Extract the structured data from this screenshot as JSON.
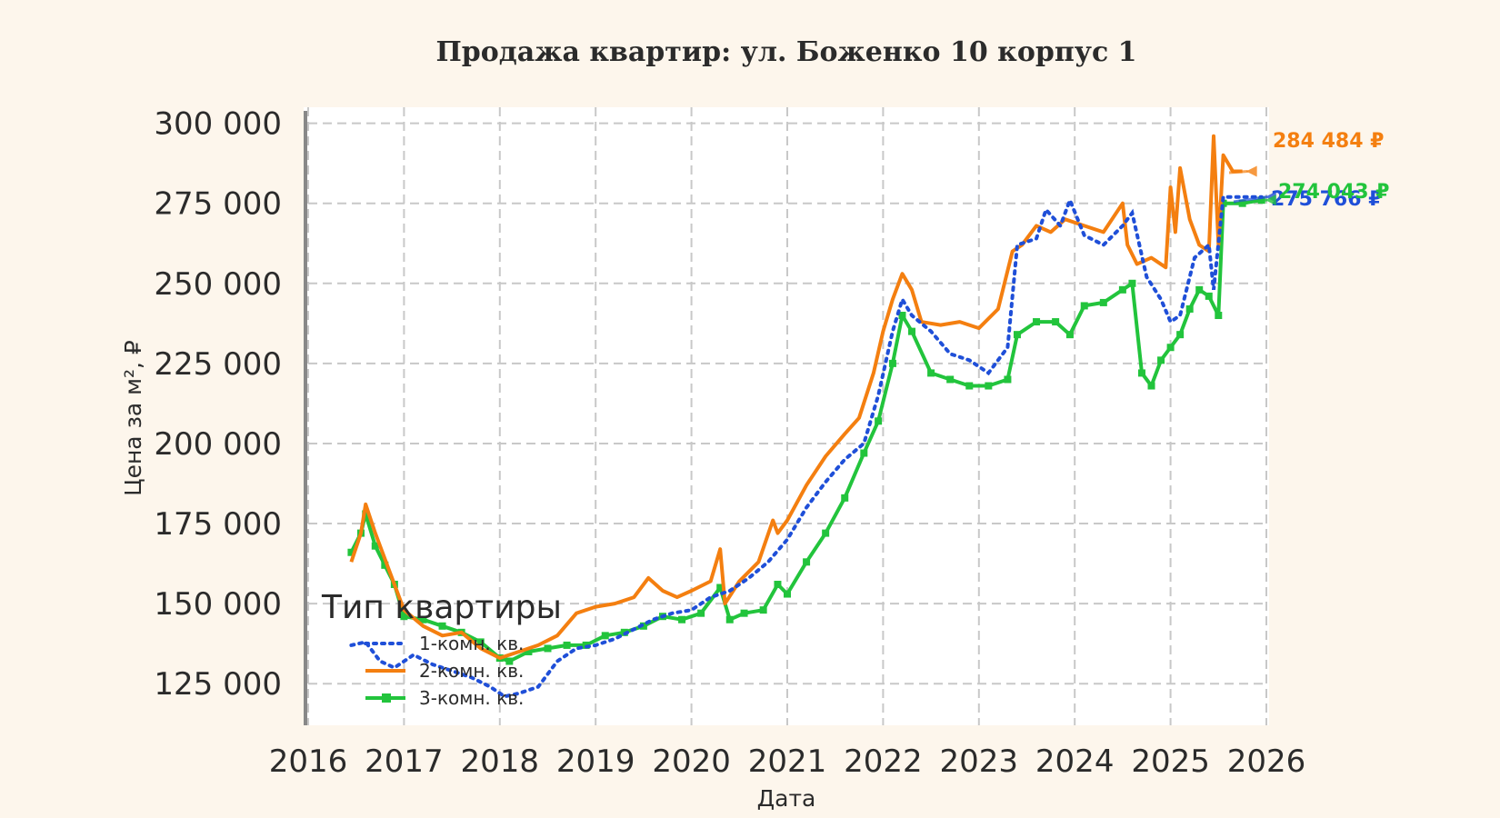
{
  "chart_data": {
    "type": "line",
    "title": "Продажа квартир: ул. Боженко 10 корпус 1",
    "xlabel": "Дата",
    "ylabel": "Цена за м², ₽",
    "xlim": [
      2016,
      2026
    ],
    "ylim": [
      112000,
      305000
    ],
    "x_ticks": [
      "2016",
      "2017",
      "2018",
      "2019",
      "2020",
      "2021",
      "2022",
      "2023",
      "2024",
      "2025",
      "2026"
    ],
    "y_ticks": [
      {
        "value": 125000,
        "label": "125 000"
      },
      {
        "value": 150000,
        "label": "150 000"
      },
      {
        "value": 175000,
        "label": "175 000"
      },
      {
        "value": 200000,
        "label": "200 000"
      },
      {
        "value": 225000,
        "label": "225 000"
      },
      {
        "value": 250000,
        "label": "250 000"
      },
      {
        "value": 275000,
        "label": "275 000"
      },
      {
        "value": 300000,
        "label": "300 000"
      }
    ],
    "grid": true,
    "legend": {
      "title": "Тип квартиры",
      "position": "bottom-left"
    },
    "series": [
      {
        "name": "1-комн. кв.",
        "color": "#1f4fd8",
        "style": "dotted",
        "end_label": "275 766 ₽",
        "x": [
          2016.45,
          2016.6,
          2016.75,
          2016.9,
          2017.1,
          2017.3,
          2017.5,
          2017.7,
          2017.9,
          2018.05,
          2018.2,
          2018.4,
          2018.6,
          2018.8,
          2019.0,
          2019.2,
          2019.4,
          2019.6,
          2019.8,
          2020.0,
          2020.2,
          2020.4,
          2020.6,
          2020.8,
          2021.0,
          2021.2,
          2021.4,
          2021.6,
          2021.8,
          2021.95,
          2022.1,
          2022.2,
          2022.3,
          2022.5,
          2022.7,
          2022.9,
          2023.1,
          2023.3,
          2023.4,
          2023.6,
          2023.7,
          2023.85,
          2023.95,
          2024.1,
          2024.3,
          2024.5,
          2024.6,
          2024.75,
          2024.9,
          2025.0,
          2025.1,
          2025.25,
          2025.4,
          2025.45,
          2025.55,
          2025.75,
          2025.95
        ],
        "y": [
          137000,
          138000,
          132000,
          130000,
          134000,
          131000,
          129000,
          127000,
          124000,
          121000,
          122000,
          124000,
          132000,
          136000,
          137000,
          139000,
          142000,
          145000,
          147000,
          148000,
          152000,
          154000,
          158000,
          163000,
          170000,
          180000,
          188000,
          195000,
          200000,
          215000,
          235000,
          245000,
          240000,
          235000,
          228000,
          226000,
          222000,
          230000,
          262000,
          264000,
          273000,
          268000,
          276000,
          265000,
          262000,
          268000,
          272000,
          252000,
          245000,
          238000,
          240000,
          258000,
          262000,
          248000,
          277000,
          277000,
          277000
        ]
      },
      {
        "name": "2-комн. кв.",
        "color": "#f47f10",
        "style": "solid",
        "end_label": "284 484 ₽",
        "x": [
          2016.45,
          2016.55,
          2016.6,
          2016.7,
          2016.85,
          2017.0,
          2017.2,
          2017.4,
          2017.6,
          2017.8,
          2018.0,
          2018.2,
          2018.4,
          2018.6,
          2018.8,
          2019.0,
          2019.2,
          2019.4,
          2019.55,
          2019.7,
          2019.85,
          2020.0,
          2020.2,
          2020.3,
          2020.35,
          2020.5,
          2020.7,
          2020.85,
          2020.9,
          2021.0,
          2021.2,
          2021.4,
          2021.6,
          2021.75,
          2021.9,
          2022.0,
          2022.1,
          2022.2,
          2022.3,
          2022.4,
          2022.6,
          2022.8,
          2023.0,
          2023.2,
          2023.35,
          2023.45,
          2023.6,
          2023.75,
          2023.9,
          2024.1,
          2024.3,
          2024.5,
          2024.55,
          2024.65,
          2024.8,
          2024.95,
          2025.0,
          2025.05,
          2025.1,
          2025.2,
          2025.3,
          2025.4,
          2025.45,
          2025.5,
          2025.55,
          2025.65,
          2025.75
        ],
        "y": [
          163000,
          172000,
          181000,
          172000,
          160000,
          148000,
          143000,
          140000,
          141000,
          136000,
          133000,
          135000,
          137000,
          140000,
          147000,
          149000,
          150000,
          152000,
          158000,
          154000,
          152000,
          154000,
          157000,
          167000,
          150000,
          157000,
          163000,
          176000,
          172000,
          176000,
          187000,
          196000,
          203000,
          208000,
          222000,
          235000,
          245000,
          253000,
          248000,
          238000,
          237000,
          238000,
          236000,
          242000,
          260000,
          262000,
          268000,
          266000,
          270000,
          268000,
          266000,
          275000,
          262000,
          256000,
          258000,
          255000,
          280000,
          266000,
          286000,
          270000,
          262000,
          260000,
          296000,
          262000,
          290000,
          285000,
          285000
        ]
      },
      {
        "name": "3-комн. кв.",
        "color": "#22c43c",
        "style": "solid-square",
        "end_label": "274 043 ₽",
        "x": [
          2016.45,
          2016.55,
          2016.6,
          2016.7,
          2016.8,
          2016.9,
          2017.0,
          2017.2,
          2017.4,
          2017.6,
          2017.8,
          2018.0,
          2018.1,
          2018.3,
          2018.5,
          2018.7,
          2018.9,
          2019.1,
          2019.3,
          2019.5,
          2019.7,
          2019.9,
          2020.1,
          2020.3,
          2020.4,
          2020.55,
          2020.75,
          2020.9,
          2021.0,
          2021.2,
          2021.4,
          2021.6,
          2021.8,
          2021.95,
          2022.1,
          2022.2,
          2022.3,
          2022.5,
          2022.7,
          2022.9,
          2023.1,
          2023.3,
          2023.4,
          2023.6,
          2023.8,
          2023.95,
          2024.1,
          2024.3,
          2024.5,
          2024.6,
          2024.7,
          2024.8,
          2024.9,
          2025.0,
          2025.1,
          2025.2,
          2025.3,
          2025.4,
          2025.5,
          2025.55,
          2025.75,
          2025.95
        ],
        "y": [
          166000,
          172000,
          178000,
          168000,
          162000,
          156000,
          146000,
          145000,
          143000,
          141000,
          138000,
          133000,
          132000,
          135000,
          136000,
          137000,
          137000,
          140000,
          141000,
          143000,
          146000,
          145000,
          147000,
          155000,
          145000,
          147000,
          148000,
          156000,
          153000,
          163000,
          172000,
          183000,
          197000,
          207000,
          225000,
          240000,
          235000,
          222000,
          220000,
          218000,
          218000,
          220000,
          234000,
          238000,
          238000,
          234000,
          243000,
          244000,
          248000,
          250000,
          222000,
          218000,
          226000,
          230000,
          234000,
          242000,
          248000,
          246000,
          240000,
          275000,
          275000,
          276000
        ]
      }
    ]
  }
}
